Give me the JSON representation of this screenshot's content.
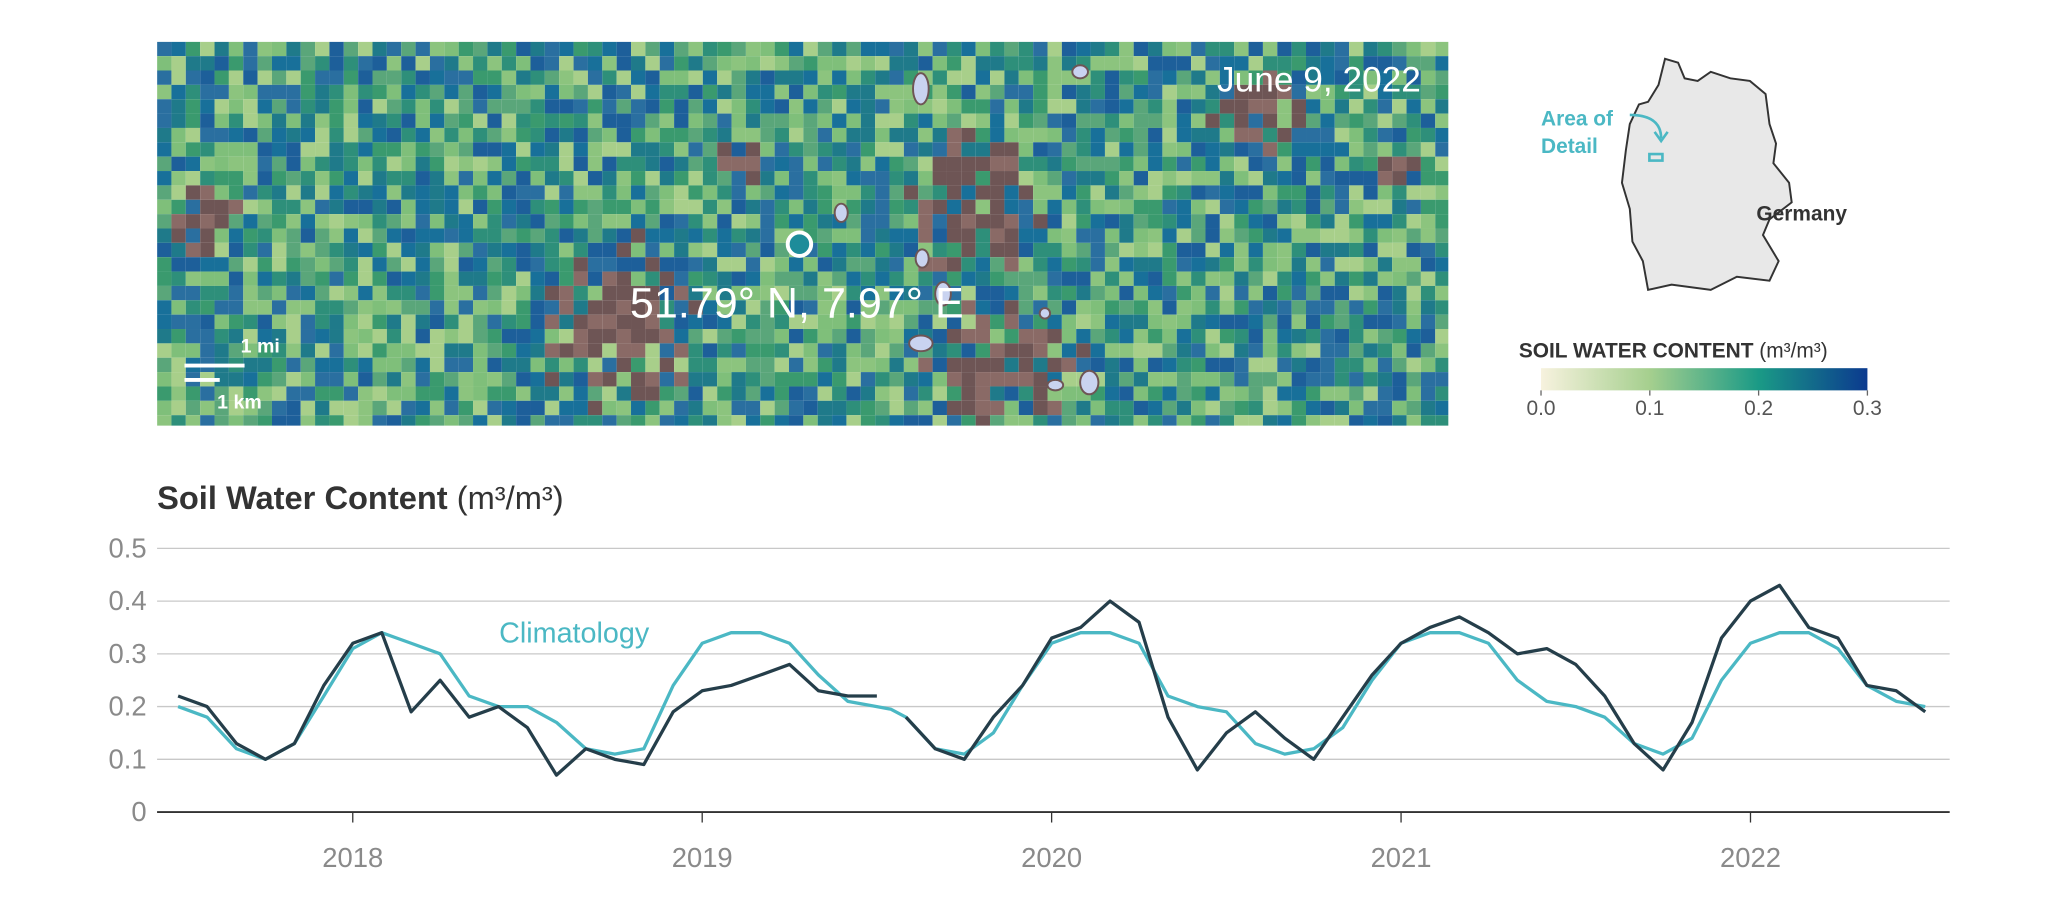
{
  "map": {
    "date": "June 9, 2022",
    "coordinates": "51.79° N, 7.97° E",
    "scale_mi": "1 mi",
    "scale_km": "1 km",
    "inset_label": [
      "Area of",
      "Detail"
    ],
    "country": "Germany",
    "colorbar": {
      "title": "SOIL WATER CONTENT",
      "unit": "(m³/m³)",
      "lim": [
        0,
        0.3
      ],
      "ticks": [
        {
          "value": 0,
          "label": "0.0"
        },
        0.1,
        0.2,
        0.3
      ],
      "colors": [
        "#f7f2de",
        "#a5cf8e",
        "#1a9a86",
        "#0b3a8f"
      ]
    }
  },
  "chart_data": {
    "type": "line",
    "title": "Soil Water Content",
    "unit": "(m³/m³)",
    "x": [
      2017.5,
      2017.583,
      2017.667,
      2017.75,
      2017.833,
      2017.917,
      2018,
      2018.083,
      2018.167,
      2018.25,
      2018.333,
      2018.417,
      2018.5,
      2018.583,
      2018.667,
      2018.75,
      2018.833,
      2018.917,
      2019,
      2019.083,
      2019.167,
      2019.25,
      2019.333,
      2019.417,
      2019.5,
      2019.54,
      2019.583,
      2019.667,
      2019.75,
      2019.833,
      2019.917,
      2020,
      2020.083,
      2020.167,
      2020.25,
      2020.333,
      2020.417,
      2020.5,
      2020.583,
      2020.667,
      2020.75,
      2020.833,
      2020.917,
      2021,
      2021.083,
      2021.167,
      2021.25,
      2021.333,
      2021.417,
      2021.5,
      2021.583,
      2021.667,
      2021.75,
      2021.833,
      2021.917,
      2022,
      2022.083,
      2022.167,
      2022.25,
      2022.333,
      2022.417,
      2022.5
    ],
    "series": [
      {
        "name": "Climatology",
        "color": "#4bb8c4",
        "values": [
          0.2,
          0.18,
          0.12,
          0.1,
          0.13,
          0.22,
          0.31,
          0.34,
          0.32,
          0.3,
          0.22,
          0.2,
          0.2,
          0.17,
          0.12,
          0.11,
          0.12,
          0.24,
          0.32,
          0.34,
          0.34,
          0.32,
          0.26,
          0.21,
          0.2,
          0.195,
          0.18,
          0.12,
          0.11,
          0.15,
          0.24,
          0.32,
          0.34,
          0.34,
          0.32,
          0.22,
          0.2,
          0.19,
          0.13,
          0.11,
          0.12,
          0.16,
          0.25,
          0.32,
          0.34,
          0.34,
          0.32,
          0.25,
          0.21,
          0.2,
          0.18,
          0.13,
          0.11,
          0.14,
          0.25,
          0.32,
          0.34,
          0.34,
          0.31,
          0.24,
          0.21,
          0.2
        ]
      },
      {
        "color": "#253e4a",
        "values": [
          0.22,
          0.2,
          0.13,
          0.1,
          0.13,
          0.24,
          0.32,
          0.34,
          0.19,
          0.25,
          0.18,
          0.2,
          0.16,
          0.07,
          0.12,
          0.1,
          0.09,
          0.19,
          0.23,
          0.24,
          0.26,
          0.28,
          0.23,
          0.22,
          0.22,
          null,
          0.18,
          0.12,
          0.1,
          0.18,
          0.24,
          0.33,
          0.35,
          0.4,
          0.36,
          0.18,
          0.08,
          0.15,
          0.19,
          0.14,
          0.1,
          0.18,
          0.26,
          0.32,
          0.35,
          0.37,
          0.34,
          0.3,
          0.31,
          0.28,
          0.22,
          0.13,
          0.08,
          0.17,
          0.33,
          0.4,
          0.43,
          0.35,
          0.33,
          0.24,
          0.23,
          0.19
        ]
      }
    ],
    "xlim": [
      2017.44,
      2022.57
    ],
    "xticks": [
      2018,
      2019,
      2020,
      2021,
      2022
    ],
    "ylim": [
      0,
      0.5
    ],
    "yticks": [
      0,
      0.1,
      0.2,
      0.3,
      0.4,
      0.5
    ],
    "grid": true
  }
}
